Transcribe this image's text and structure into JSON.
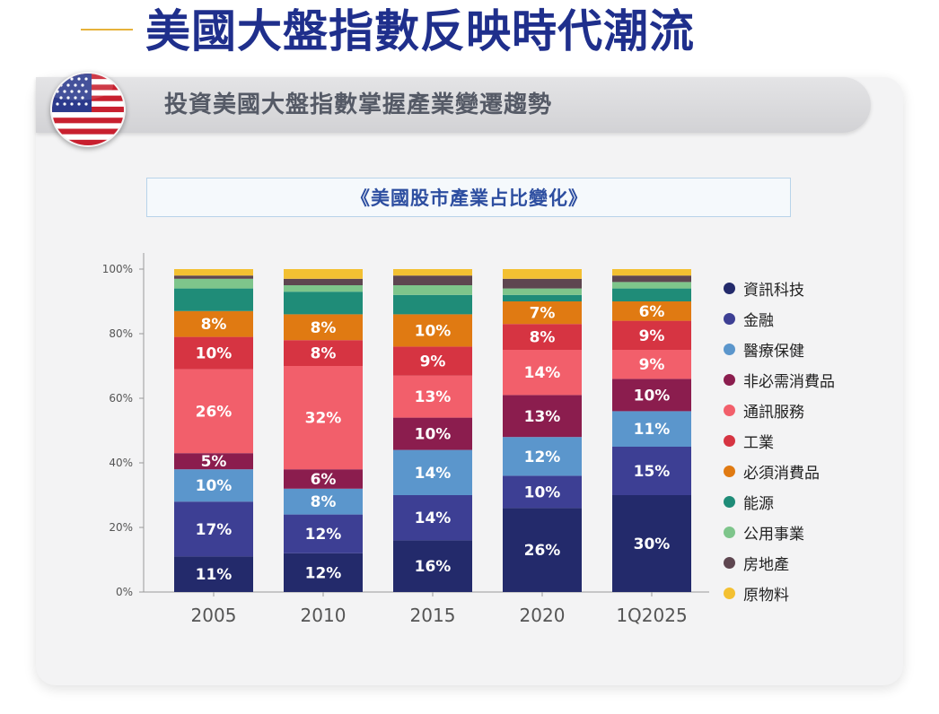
{
  "header": {
    "title": "美國大盤指數反映時代潮流",
    "banner": "投資美國大盤指數掌握產業變遷趨勢",
    "flag_icon": "us-flag-icon"
  },
  "chart_data": {
    "type": "bar",
    "stacked": true,
    "title": "《美國股市產業占比變化》",
    "categories": [
      "2005",
      "2010",
      "2015",
      "2020",
      "1Q2025"
    ],
    "ylim": [
      0,
      100
    ],
    "yticks": [
      "0%",
      "20%",
      "40%",
      "60%",
      "80%",
      "100%"
    ],
    "grid": false,
    "legend_position": "right",
    "series": [
      {
        "name": "資訊科技",
        "color": "#232a6b",
        "values": [
          11,
          12,
          16,
          26,
          30
        ]
      },
      {
        "name": "金融",
        "color": "#3d3f94",
        "values": [
          17,
          12,
          14,
          10,
          15
        ]
      },
      {
        "name": "醫療保健",
        "color": "#5b96cc",
        "values": [
          10,
          8,
          14,
          12,
          11
        ]
      },
      {
        "name": "非必需消費品",
        "color": "#8b1d4e",
        "values": [
          5,
          6,
          10,
          13,
          10
        ]
      },
      {
        "name": "通訊服務",
        "color": "#f25f6b",
        "values": [
          26,
          32,
          13,
          14,
          9
        ]
      },
      {
        "name": "工業",
        "color": "#d63442",
        "values": [
          10,
          8,
          9,
          8,
          9
        ]
      },
      {
        "name": "必須消費品",
        "color": "#e07a12",
        "values": [
          8,
          8,
          10,
          7,
          6
        ]
      },
      {
        "name": "能源",
        "color": "#1f8c78",
        "values": [
          7,
          7,
          6,
          2,
          4
        ]
      },
      {
        "name": "公用事業",
        "color": "#7ec58b",
        "values": [
          3,
          2,
          3,
          2,
          2
        ]
      },
      {
        "name": "房地產",
        "color": "#5e4650",
        "values": [
          1,
          2,
          3,
          3,
          2
        ]
      },
      {
        "name": "原物料",
        "color": "#f3c032",
        "values": [
          2,
          3,
          2,
          3,
          2
        ]
      }
    ],
    "data_labels": [
      [
        "11%",
        "12%",
        "16%",
        "26%",
        "30%"
      ],
      [
        "17%",
        "12%",
        "14%",
        "10%",
        "15%"
      ],
      [
        "10%",
        "8%",
        "14%",
        "12%",
        "11%"
      ],
      [
        "5%",
        "6%",
        "10%",
        "13%",
        "10%"
      ],
      [
        "26%",
        "32%",
        "13%",
        "14%",
        "9%"
      ],
      [
        "10%",
        "8%",
        "9%",
        "8%",
        "9%"
      ],
      [
        "8%",
        "8%",
        "10%",
        "7%",
        "6%"
      ],
      [
        "",
        "",
        "",
        "",
        ""
      ],
      [
        "",
        "",
        "",
        "",
        ""
      ],
      [
        "",
        "",
        "",
        "",
        ""
      ],
      [
        "",
        "",
        "",
        "",
        ""
      ]
    ]
  }
}
